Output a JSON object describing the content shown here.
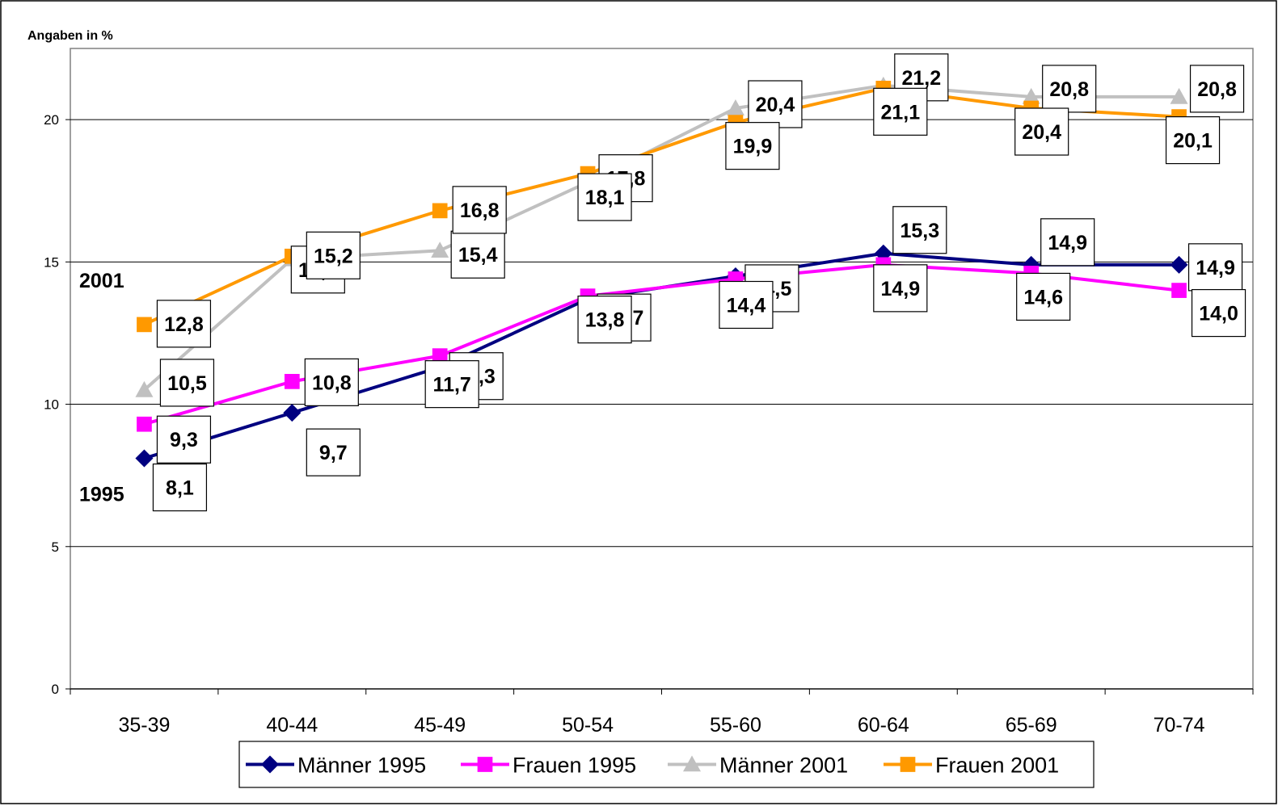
{
  "chart_data": {
    "type": "line",
    "title": "",
    "unit_label": "Angaben in %",
    "xlabel": "",
    "ylabel": "",
    "categories": [
      "35-39",
      "40-44",
      "45-49",
      "50-54",
      "55-60",
      "60-64",
      "65-69",
      "70-74"
    ],
    "ylim": [
      0,
      22.5
    ],
    "yticks": [
      0,
      5,
      10,
      15,
      20
    ],
    "grid": true,
    "legend_position": "bottom",
    "series": [
      {
        "name": "Männer 1995",
        "color": "#000080",
        "marker": "diamond",
        "values": [
          8.1,
          9.7,
          11.3,
          13.7,
          14.5,
          15.3,
          14.9,
          14.9
        ],
        "labels": [
          "8,1",
          "9,7",
          "11,3",
          "13,7",
          "14,5",
          "15,3",
          "14,9",
          "14,9"
        ]
      },
      {
        "name": "Frauen 1995",
        "color": "#FF00FF",
        "marker": "square",
        "values": [
          9.3,
          10.8,
          11.7,
          13.8,
          14.4,
          14.9,
          14.6,
          14.0
        ],
        "labels": [
          "9,3",
          "10,8",
          "11,7",
          "13,8",
          "14,4",
          "14,9",
          "14,6",
          "14,0"
        ]
      },
      {
        "name": "Männer 2001",
        "color": "#C0C0C0",
        "marker": "triangle",
        "values": [
          10.5,
          15.1,
          15.4,
          17.8,
          20.4,
          21.2,
          20.8,
          20.8
        ],
        "labels": [
          "10,5",
          "15,1",
          "15,4",
          "17,8",
          "20,4",
          "21,2",
          "20,8",
          "20,8"
        ]
      },
      {
        "name": "Frauen 2001",
        "color": "#FF9900",
        "marker": "square",
        "values": [
          12.8,
          15.2,
          16.8,
          18.1,
          19.9,
          21.1,
          20.4,
          20.1
        ],
        "labels": [
          "12,8",
          "15,2",
          "16,8",
          "18,1",
          "19,9",
          "21,1",
          "20,4",
          "20,1"
        ]
      }
    ],
    "annotations": [
      {
        "text": "2001",
        "near_value": 14.5
      },
      {
        "text": "1995",
        "near_value": 7.0
      }
    ]
  }
}
